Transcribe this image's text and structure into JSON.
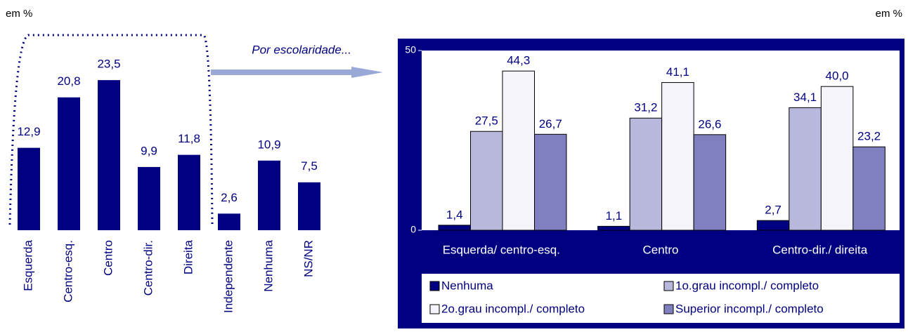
{
  "chart_data": [
    {
      "type": "bar",
      "unit_label": "em %",
      "annotation": "Por escolaridade...",
      "categories": [
        "Esquerda",
        "Centro-esq.",
        "Centro",
        "Centro-dir.",
        "Direita",
        "Independente",
        "Nenhuma",
        "NS/NR"
      ],
      "values": [
        12.9,
        20.8,
        23.5,
        9.9,
        11.8,
        2.6,
        10.9,
        7.5
      ],
      "value_labels": [
        "12,9",
        "20,8",
        "23,5",
        "9,9",
        "11,8",
        "2,6",
        "10,9",
        "7,5"
      ],
      "color": "#000080"
    },
    {
      "type": "grouped_bar",
      "unit_label": "em %",
      "categories": [
        "Esquerda/ centro-esq.",
        "Centro",
        "Centro-dir./ direita"
      ],
      "series": [
        {
          "name": "Nenhuma",
          "color": "#000080",
          "values": [
            1.4,
            1.1,
            2.7
          ],
          "value_labels": [
            "1,4",
            "1,1",
            "2,7"
          ]
        },
        {
          "name": "1o.grau incompl./ completo",
          "color": "#b8b8dc",
          "values": [
            27.5,
            31.2,
            34.1
          ],
          "value_labels": [
            "27,5",
            "31,2",
            "34,1"
          ]
        },
        {
          "name": "2o.grau incompl./ completo",
          "color": "#f4f4fa",
          "values": [
            44.3,
            41.1,
            40.0
          ],
          "value_labels": [
            "44,3",
            "41,1",
            "40,0"
          ]
        },
        {
          "name": "Superior incompl./ completo",
          "color": "#8080c0",
          "values": [
            26.7,
            26.6,
            23.2
          ],
          "value_labels": [
            "26,7",
            "26,6",
            "23,2"
          ]
        }
      ],
      "ylim": [
        0,
        50
      ],
      "yticks": [
        0,
        50
      ],
      "legend": "bottom"
    }
  ]
}
